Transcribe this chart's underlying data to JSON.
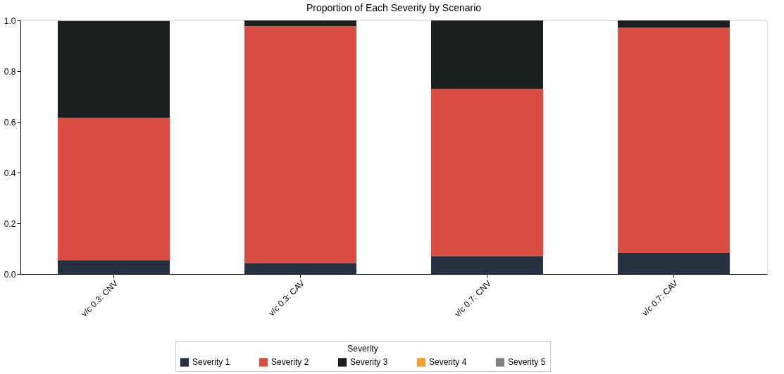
{
  "chart_data": {
    "type": "bar",
    "title": "Proportion of Each Severity by Scenario",
    "stacked": true,
    "categories": [
      "v/c 0.3: CNV",
      "v/c 0.3: CAV",
      "v/c 0.7: CNV",
      "v/c 0.7: CAV"
    ],
    "series": [
      {
        "name": "Severity 1",
        "color": "#263040",
        "values": [
          0.055,
          0.042,
          0.07,
          0.083
        ]
      },
      {
        "name": "Severity 2",
        "color": "#d94d43",
        "values": [
          0.562,
          0.935,
          0.66,
          0.889
        ]
      },
      {
        "name": "Severity 3",
        "color": "#1c201f",
        "values": [
          0.38,
          0.023,
          0.27,
          0.028
        ]
      },
      {
        "name": "Severity 4",
        "color": "#f0a030",
        "values": [
          0.003,
          0,
          0,
          0
        ]
      },
      {
        "name": "Severity 5",
        "color": "#808080",
        "values": [
          0,
          0,
          0,
          0
        ]
      }
    ],
    "legend_title": "Severity",
    "legend": "bottom",
    "grid": false,
    "ylim": [
      0,
      1
    ],
    "yticks": [
      {
        "value": 0,
        "label": "0.0"
      },
      {
        "value": 0.2,
        "label": "0.2"
      },
      {
        "value": 0.4,
        "label": "0.4"
      },
      {
        "value": 0.6,
        "label": "0.6"
      },
      {
        "value": 0.8,
        "label": "0.8"
      },
      {
        "value": 1,
        "label": "1.0"
      }
    ]
  }
}
